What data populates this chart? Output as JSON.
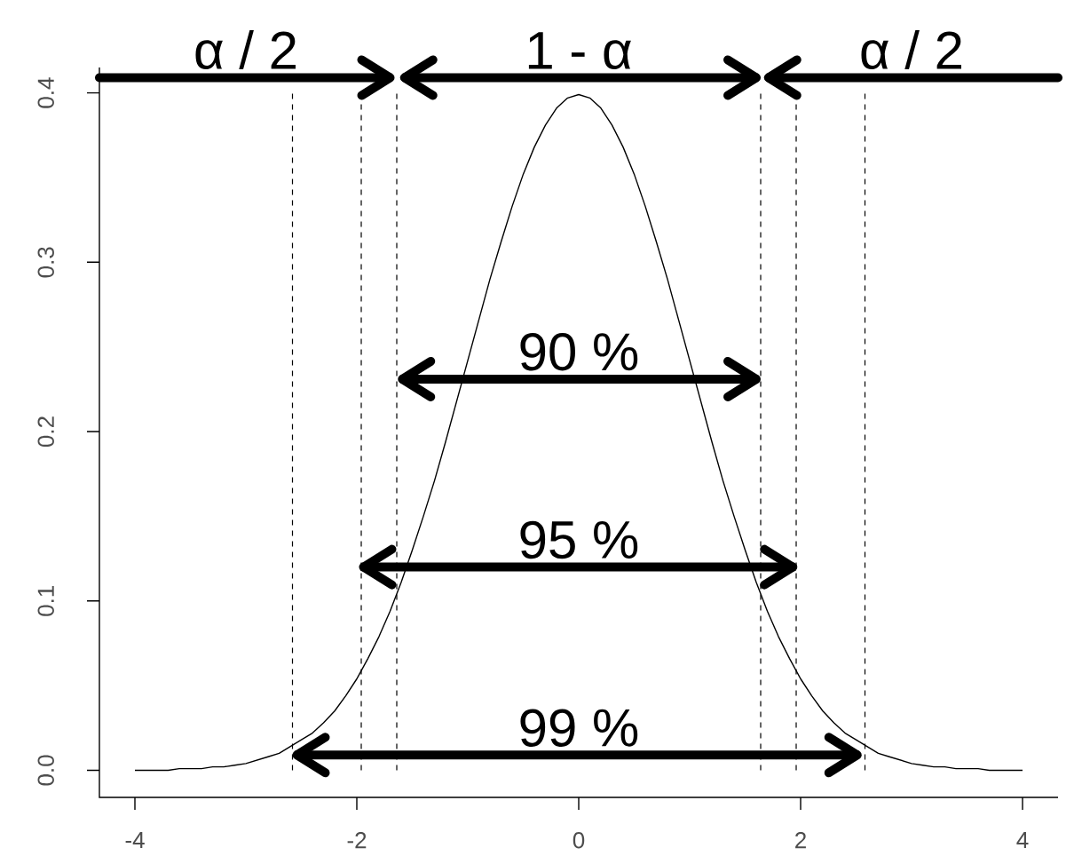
{
  "chart_data": {
    "type": "line",
    "x": [
      -4,
      -3.9,
      -3.8,
      -3.7,
      -3.6,
      -3.5,
      -3.4,
      -3.3,
      -3.2,
      -3.1,
      -3,
      -2.9,
      -2.8,
      -2.7,
      -2.6,
      -2.5,
      -2.4,
      -2.3,
      -2.2,
      -2.1,
      -2,
      -1.9,
      -1.8,
      -1.7,
      -1.6,
      -1.5,
      -1.4,
      -1.3,
      -1.2,
      -1.1,
      -1,
      -0.9,
      -0.8,
      -0.7,
      -0.6,
      -0.5,
      -0.4,
      -0.3,
      -0.2,
      -0.1,
      0,
      0.1,
      0.2,
      0.3,
      0.4,
      0.5,
      0.6,
      0.7,
      0.8,
      0.9,
      1,
      1.1,
      1.2,
      1.3,
      1.4,
      1.5,
      1.6,
      1.7,
      1.8,
      1.9,
      2,
      2.1,
      2.2,
      2.3,
      2.4,
      2.5,
      2.6,
      2.7,
      2.8,
      2.9,
      3,
      3.1,
      3.2,
      3.3,
      3.4,
      3.5,
      3.6,
      3.7,
      3.8,
      3.9,
      4
    ],
    "series": [
      {
        "color": "#000000",
        "values": [
          0,
          0,
          0,
          0,
          0.001,
          0.001,
          0.001,
          0.002,
          0.002,
          0.003,
          0.004,
          0.006,
          0.008,
          0.01,
          0.014,
          0.018,
          0.022,
          0.028,
          0.035,
          0.044,
          0.054,
          0.066,
          0.079,
          0.094,
          0.111,
          0.13,
          0.15,
          0.171,
          0.194,
          0.218,
          0.242,
          0.266,
          0.29,
          0.312,
          0.333,
          0.352,
          0.368,
          0.381,
          0.391,
          0.397,
          0.399,
          0.397,
          0.391,
          0.381,
          0.368,
          0.352,
          0.333,
          0.312,
          0.29,
          0.266,
          0.242,
          0.218,
          0.194,
          0.171,
          0.15,
          0.13,
          0.111,
          0.094,
          0.079,
          0.066,
          0.054,
          0.044,
          0.035,
          0.028,
          0.022,
          0.018,
          0.014,
          0.01,
          0.008,
          0.006,
          0.004,
          0.003,
          0.002,
          0.002,
          0.001,
          0.001,
          0.001,
          0,
          0,
          0,
          0
        ]
      },
      {
        "color": "#000000",
        "x": [
          -4.32,
          -1.7
        ],
        "values": [
          0.409,
          0.409
        ]
      },
      {
        "color": "#000000",
        "x": [
          -1.57,
          1.6
        ],
        "values": [
          0.409,
          0.409
        ]
      },
      {
        "color": "#000000",
        "x": [
          1.71,
          4.32
        ],
        "values": [
          0.409,
          0.409
        ]
      },
      {
        "color": "#000000",
        "x": [
          -1.59,
          1.6
        ],
        "values": [
          0.231,
          0.231
        ]
      },
      {
        "color": "#000000",
        "x": [
          -1.94,
          1.93
        ],
        "values": [
          0.12,
          0.12
        ]
      },
      {
        "color": "#000000",
        "x": [
          -2.54,
          2.51
        ],
        "values": [
          0.009,
          0.009
        ]
      }
    ],
    "xlim": [
      -4.32,
      4.32
    ],
    "ylim": [
      -0.016,
      0.415
    ],
    "xticks": [
      -4,
      -2,
      0,
      2,
      4
    ],
    "yticks": [
      {
        "value": 0,
        "label": "0.0"
      },
      0.1,
      0.2,
      0.3,
      0.4
    ],
    "ref_lines": [
      {
        "axis": "x",
        "value": -2.58,
        "line_style": "dashed",
        "color": "#000000"
      },
      {
        "axis": "x",
        "value": -1.96,
        "line_style": "dashed",
        "color": "#000000"
      },
      {
        "axis": "x",
        "value": -1.64,
        "line_style": "dashed",
        "color": "#000000"
      },
      {
        "axis": "x",
        "value": 1.64,
        "line_style": "dashed",
        "color": "#000000"
      },
      {
        "axis": "x",
        "value": 1.96,
        "line_style": "dashed",
        "color": "#000000"
      },
      {
        "axis": "x",
        "value": 2.58,
        "line_style": "dashed",
        "color": "#000000"
      }
    ],
    "annotations": [
      {
        "text": "α / 2",
        "x": -3,
        "y": 0.409
      },
      {
        "text": "1 - α",
        "x": 0,
        "y": 0.409
      },
      {
        "text": "α / 2",
        "x": 3,
        "y": 0.409
      },
      {
        "text": "90 %",
        "x": 0,
        "y": 0.231
      },
      {
        "text": "95 %",
        "x": 0,
        "y": 0.12
      },
      {
        "text": "99 %",
        "x": 0,
        "y": 0.009
      }
    ],
    "marker": "none",
    "line_style": "solid"
  }
}
